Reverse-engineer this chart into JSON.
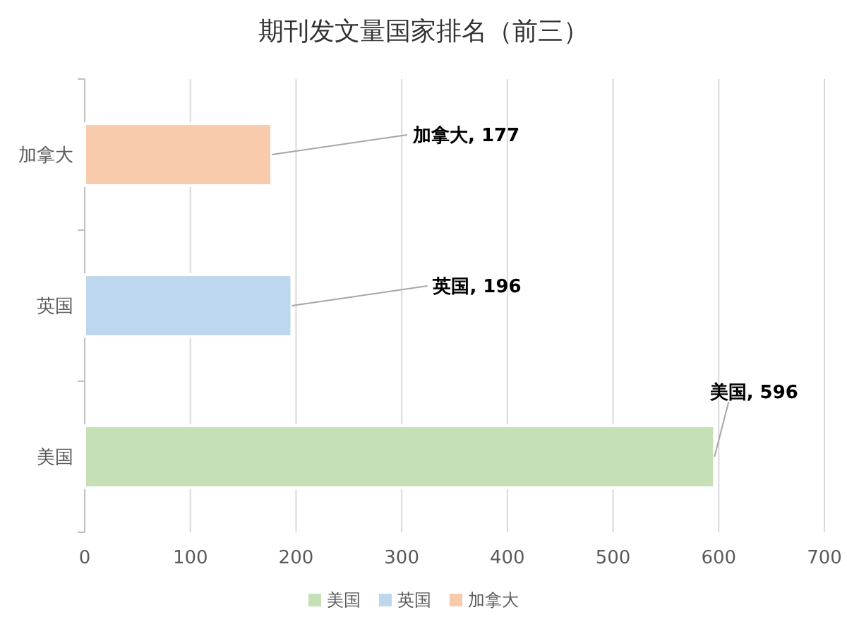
{
  "chart_data": {
    "type": "bar",
    "orientation": "horizontal",
    "title": "期刊发文量国家排名（前三）",
    "categories": [
      "加拿大",
      "英国",
      "美国"
    ],
    "series": [
      {
        "name": "美国",
        "color": "#c5e0b4",
        "values": [
          null,
          null,
          596
        ],
        "value_labels": [
          null,
          null,
          "美国, 596"
        ]
      },
      {
        "name": "英国",
        "color": "#bdd7ee",
        "values": [
          null,
          196,
          null
        ],
        "value_labels": [
          null,
          "英国, 196",
          null
        ]
      },
      {
        "name": "加拿大",
        "color": "#f8cbad",
        "values": [
          177,
          null,
          null
        ],
        "value_labels": [
          "加拿大, 177",
          null,
          null
        ]
      }
    ],
    "xlim": [
      0,
      700
    ],
    "xticks": [
      0,
      100,
      200,
      300,
      400,
      500,
      600,
      700
    ],
    "grid": "x",
    "legend": "bottom"
  }
}
